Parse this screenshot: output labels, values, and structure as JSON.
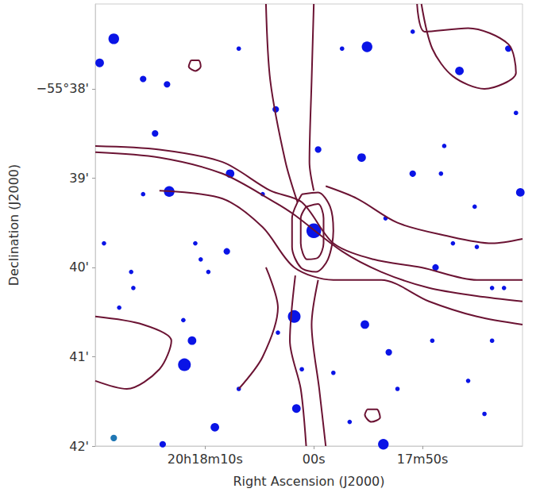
{
  "chart_data": {
    "type": "scatter",
    "xlabel": "Right Ascension (J2000)",
    "ylabel": "Declination (J2000)",
    "xlim": [
      80.1,
      40.8
    ],
    "ylim": [
      42,
      37.05
    ],
    "xticks": [
      {
        "value": 70,
        "label": "20h18m10s"
      },
      {
        "value": 60,
        "label": "00s"
      },
      {
        "value": 50,
        "label": "17m50s"
      }
    ],
    "yticks": [
      {
        "value": 38,
        "label": "−55°38'"
      },
      {
        "value": 39,
        "label": "39'"
      },
      {
        "value": 40,
        "label": "40'"
      },
      {
        "value": 41,
        "label": "41'"
      },
      {
        "value": 42,
        "label": "42'"
      }
    ],
    "grid": false,
    "series": [
      {
        "type": "scatter",
        "color": "#0a14e6",
        "marker": "circle",
        "values": [
          [
            78.4,
            37.44
          ],
          [
            79.7,
            37.71
          ],
          [
            73.3,
            39.15
          ],
          [
            67.7,
            38.95
          ],
          [
            71.9,
            41.09
          ],
          [
            71.2,
            40.82
          ],
          [
            69.1,
            41.79
          ],
          [
            61.8,
            40.55
          ],
          [
            61.6,
            41.58
          ],
          [
            55.1,
            37.53
          ],
          [
            55.3,
            40.64
          ],
          [
            53.6,
            41.98
          ],
          [
            46.6,
            37.8
          ],
          [
            41.0,
            39.16
          ],
          [
            74.6,
            38.5
          ],
          [
            73.5,
            37.95
          ],
          [
            75.7,
            37.89
          ],
          [
            63.5,
            38.23
          ],
          [
            59.6,
            38.68
          ],
          [
            50.9,
            38.95
          ],
          [
            48.3,
            38.95
          ],
          [
            45.2,
            39.32
          ],
          [
            42.1,
            37.55
          ],
          [
            41.4,
            38.27
          ],
          [
            55.6,
            38.77
          ],
          [
            64.7,
            39.18
          ],
          [
            70.4,
            39.91
          ],
          [
            69.7,
            40.05
          ],
          [
            68.0,
            39.82
          ],
          [
            60.0,
            39.59
          ],
          [
            48.8,
            40.0
          ],
          [
            47.2,
            39.73
          ],
          [
            45.0,
            39.77
          ],
          [
            43.6,
            40.23
          ],
          [
            42.5,
            40.23
          ],
          [
            49.1,
            40.82
          ],
          [
            45.8,
            41.27
          ],
          [
            44.3,
            41.64
          ],
          [
            56.7,
            41.73
          ],
          [
            66.9,
            41.36
          ],
          [
            73.9,
            41.98
          ],
          [
            79.3,
            39.73
          ],
          [
            76.8,
            40.05
          ],
          [
            76.6,
            40.23
          ],
          [
            77.9,
            40.45
          ],
          [
            43.6,
            40.82
          ],
          [
            58.2,
            41.18
          ],
          [
            61.1,
            41.14
          ],
          [
            52.3,
            41.36
          ],
          [
            57.4,
            37.55
          ],
          [
            50.9,
            37.36
          ],
          [
            66.9,
            37.55
          ],
          [
            48.0,
            38.64
          ],
          [
            53.4,
            39.45
          ],
          [
            53.1,
            40.95
          ],
          [
            63.3,
            40.73
          ],
          [
            75.7,
            39.18
          ],
          [
            72.0,
            40.59
          ],
          [
            70.9,
            39.73
          ]
        ],
        "sizes": [
          4,
          3,
          4,
          3,
          5,
          3,
          3,
          5,
          3,
          4,
          3,
          4,
          3,
          3,
          2,
          2,
          2,
          2,
          2,
          2,
          1,
          1,
          2,
          1,
          3,
          1,
          1,
          1,
          2,
          6,
          2,
          1,
          1,
          1,
          1,
          1,
          1,
          1,
          1,
          1,
          2,
          1,
          1,
          1,
          1,
          1,
          1,
          1,
          1,
          1,
          1,
          1,
          1,
          1,
          2,
          1,
          1,
          1,
          1
        ]
      },
      {
        "type": "scatter",
        "color": "#1f77b4",
        "marker": "circle",
        "values": [
          [
            78.4,
            41.91
          ]
        ],
        "sizes": [
          2
        ]
      },
      {
        "type": "line",
        "color": "#6b1333",
        "values": [
          [
            80.1,
            38.64
          ],
          [
            74.2,
            38.68
          ],
          [
            68.4,
            38.82
          ],
          [
            64.0,
            39.14
          ],
          [
            61.1,
            39.27
          ],
          [
            58.2,
            39.73
          ],
          [
            54.5,
            39.91
          ],
          [
            50.1,
            40.0
          ],
          [
            45.0,
            40.14
          ],
          [
            40.8,
            40.14
          ]
        ]
      },
      {
        "type": "line",
        "color": "#6b1333",
        "values": [
          [
            80.1,
            38.71
          ],
          [
            74.2,
            38.77
          ],
          [
            68.4,
            38.95
          ],
          [
            63.6,
            39.27
          ],
          [
            61.8,
            39.41
          ],
          [
            57.4,
            39.82
          ],
          [
            53.8,
            40.05
          ],
          [
            49.4,
            40.23
          ],
          [
            45.0,
            40.32
          ],
          [
            40.8,
            40.38
          ]
        ]
      },
      {
        "type": "line",
        "color": "#6b1333",
        "values": [
          [
            74.2,
            39.14
          ],
          [
            68.4,
            39.23
          ],
          [
            64.7,
            39.55
          ],
          [
            61.8,
            40.0
          ],
          [
            58.2,
            40.14
          ],
          [
            53.8,
            40.14
          ],
          [
            49.4,
            40.38
          ],
          [
            45.0,
            40.55
          ],
          [
            40.8,
            40.64
          ]
        ]
      },
      {
        "type": "line",
        "color": "#6b1333",
        "values": [
          [
            58.9,
            39.09
          ],
          [
            56.0,
            39.23
          ],
          [
            52.3,
            39.5
          ],
          [
            48.0,
            39.64
          ],
          [
            43.6,
            39.73
          ],
          [
            40.8,
            39.68
          ]
        ]
      },
      {
        "type": "line",
        "color": "#6b1333",
        "values": [
          [
            64.4,
            37.05
          ],
          [
            64.0,
            37.91
          ],
          [
            62.6,
            38.82
          ],
          [
            61.5,
            39.27
          ]
        ]
      },
      {
        "type": "line",
        "color": "#6b1333",
        "values": [
          [
            60.0,
            37.05
          ],
          [
            60.2,
            37.91
          ],
          [
            60.4,
            38.82
          ],
          [
            60.0,
            39.14
          ]
        ]
      },
      {
        "type": "line",
        "color": "#6b1333",
        "values": [
          [
            60.7,
            42.0
          ],
          [
            61.2,
            41.36
          ],
          [
            62.2,
            40.82
          ],
          [
            61.7,
            40.09
          ]
        ]
      },
      {
        "type": "line",
        "color": "#6b1333",
        "values": [
          [
            58.9,
            42.0
          ],
          [
            59.5,
            41.36
          ],
          [
            60.2,
            40.64
          ],
          [
            59.6,
            40.14
          ]
        ]
      },
      {
        "type": "line",
        "color": "#6b1333",
        "values": [
          [
            61.1,
            39.18
          ],
          [
            59.6,
            39.16
          ],
          [
            58.5,
            39.32
          ],
          [
            58.2,
            39.59
          ],
          [
            58.7,
            39.91
          ],
          [
            59.8,
            40.05
          ],
          [
            61.2,
            40.0
          ],
          [
            62.0,
            39.77
          ],
          [
            62.0,
            39.45
          ],
          [
            61.1,
            39.18
          ]
        ]
      },
      {
        "type": "line",
        "color": "#6b1333",
        "values": [
          [
            60.7,
            39.32
          ],
          [
            59.6,
            39.29
          ],
          [
            59.1,
            39.45
          ],
          [
            59.1,
            39.73
          ],
          [
            59.6,
            39.89
          ],
          [
            60.6,
            39.91
          ],
          [
            61.2,
            39.73
          ],
          [
            61.2,
            39.45
          ],
          [
            60.7,
            39.32
          ]
        ]
      },
      {
        "type": "line",
        "color": "#6b1333",
        "values": [
          [
            71.3,
            37.68
          ],
          [
            70.6,
            37.68
          ],
          [
            70.4,
            37.75
          ],
          [
            70.9,
            37.8
          ],
          [
            71.5,
            37.75
          ],
          [
            71.3,
            37.68
          ]
        ]
      },
      {
        "type": "line",
        "color": "#6b1333",
        "values": [
          [
            50.5,
            37.05
          ],
          [
            49.8,
            37.36
          ],
          [
            45.8,
            37.32
          ],
          [
            42.1,
            37.5
          ],
          [
            41.4,
            37.82
          ],
          [
            44.3,
            38.0
          ],
          [
            47.2,
            37.86
          ],
          [
            49.1,
            37.55
          ],
          [
            50.1,
            37.05
          ]
        ]
      },
      {
        "type": "line",
        "color": "#6b1333",
        "values": [
          [
            80.1,
            41.27
          ],
          [
            77.2,
            41.36
          ],
          [
            74.2,
            41.14
          ],
          [
            73.1,
            40.82
          ],
          [
            75.7,
            40.64
          ],
          [
            80.1,
            40.55
          ]
        ]
      },
      {
        "type": "line",
        "color": "#6b1333",
        "values": [
          [
            55.1,
            41.59
          ],
          [
            54.2,
            41.59
          ],
          [
            53.9,
            41.68
          ],
          [
            54.7,
            41.73
          ],
          [
            55.3,
            41.65
          ],
          [
            55.1,
            41.59
          ]
        ]
      },
      {
        "type": "line",
        "color": "#6b1333",
        "values": [
          [
            66.9,
            41.36
          ],
          [
            64.7,
            41.0
          ],
          [
            63.3,
            40.45
          ],
          [
            64.4,
            40.0
          ]
        ]
      }
    ]
  }
}
